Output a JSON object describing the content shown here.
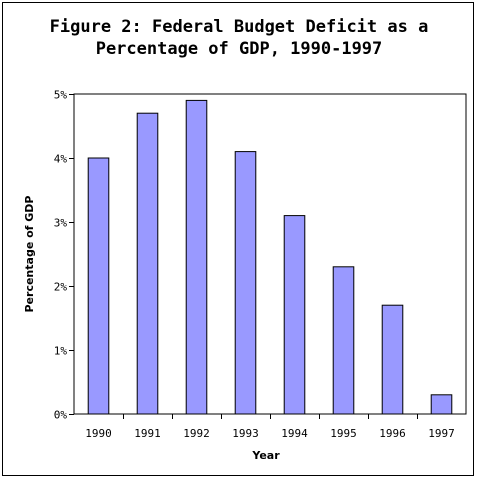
{
  "chart_data": {
    "type": "bar",
    "title_lines": [
      "Figure 2: Federal Budget Deficit as a",
      "Percentage of GDP, 1990-1997"
    ],
    "xlabel": "Year",
    "ylabel": "Percentage of GDP",
    "categories": [
      "1990",
      "1991",
      "1992",
      "1993",
      "1994",
      "1995",
      "1996",
      "1997"
    ],
    "values": [
      4.0,
      4.7,
      4.9,
      4.1,
      3.1,
      2.3,
      1.7,
      0.3
    ],
    "ylim": [
      0,
      5
    ],
    "yticks": [
      0,
      1,
      2,
      3,
      4,
      5
    ],
    "ytick_labels": [
      "0%",
      "1%",
      "2%",
      "3%",
      "4%",
      "5%"
    ],
    "bar_color": "#9999ff",
    "grid": false,
    "legend": "none"
  }
}
